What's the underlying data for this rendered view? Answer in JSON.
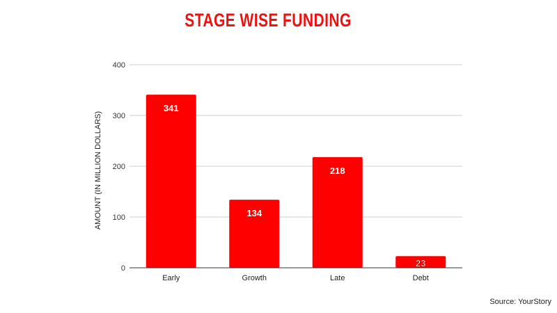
{
  "chart_data": {
    "type": "bar",
    "title": "STAGE WISE FUNDING",
    "ylabel": "AMOUNT (IN MILLION DOLLARS)",
    "xlabel": "",
    "categories": [
      "Early",
      "Growth",
      "Late",
      "Debt"
    ],
    "values": [
      341,
      134,
      218,
      23
    ],
    "ylim": [
      0,
      400
    ],
    "yticks": [
      0,
      100,
      200,
      300,
      400
    ],
    "grid": true,
    "legend": "none",
    "bar_color": "#ff0000",
    "title_color": "#ee1111"
  },
  "source": "Source: YourStory"
}
